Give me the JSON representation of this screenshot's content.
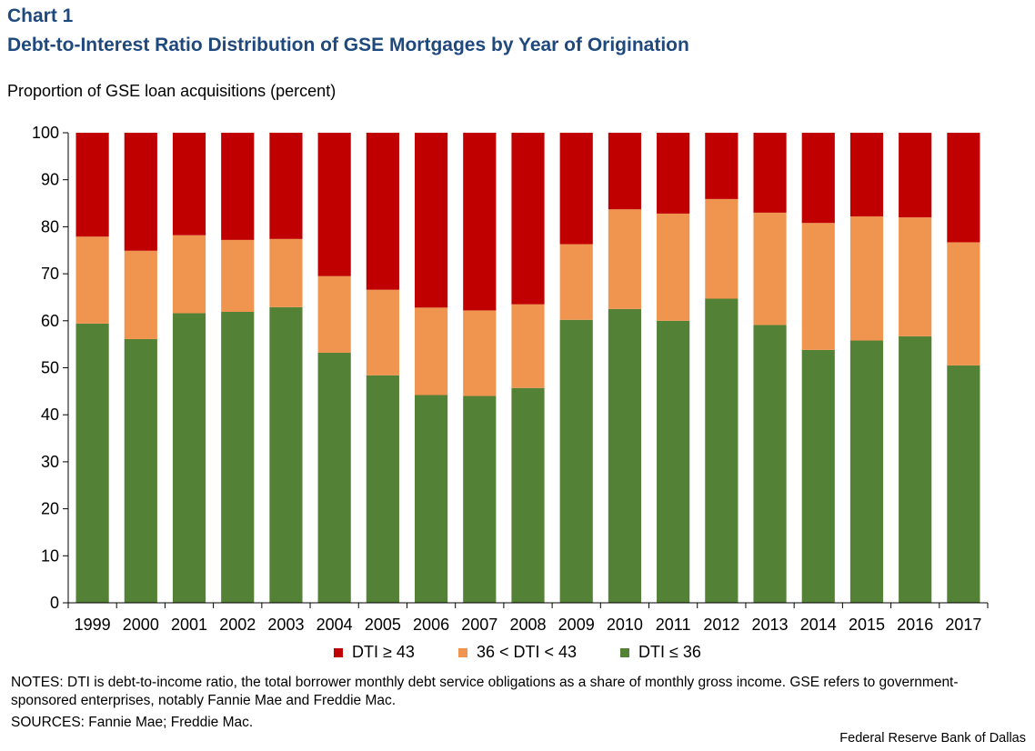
{
  "header": {
    "chart_label": "Chart 1",
    "title": "Debt-to-Interest Ratio Distribution of GSE Mortgages by Year of Origination",
    "y_unit": "Proportion of GSE loan acquisitions  (percent)"
  },
  "chart_data": {
    "type": "bar",
    "stacked": true,
    "title": "Debt-to-Interest Ratio Distribution of GSE Mortgages by Year of Origination",
    "ylabel": "Proportion of GSE loan acquisitions  (percent)",
    "ylim": [
      0,
      100
    ],
    "yticks": [
      0,
      10,
      20,
      30,
      40,
      50,
      60,
      70,
      80,
      90,
      100
    ],
    "grid": false,
    "legend_position": "bottom",
    "categories": [
      "1999",
      "2000",
      "2001",
      "2002",
      "2003",
      "2004",
      "2005",
      "2006",
      "2007",
      "2008",
      "2009",
      "2010",
      "2011",
      "2012",
      "2013",
      "2014",
      "2015",
      "2016",
      "2017"
    ],
    "series": [
      {
        "name": "DTI ≤ 36",
        "color": "#538135",
        "values": [
          59.4,
          56.1,
          61.6,
          61.9,
          62.9,
          53.2,
          48.4,
          44.2,
          44.0,
          45.7,
          60.2,
          62.5,
          60.0,
          64.7,
          59.1,
          53.8,
          55.8,
          56.7,
          50.5
        ]
      },
      {
        "name": "36 < DTI < 43",
        "color": "#f09550",
        "values": [
          18.5,
          18.8,
          16.6,
          15.3,
          14.5,
          16.3,
          18.2,
          18.6,
          18.2,
          17.8,
          16.1,
          21.2,
          22.8,
          21.2,
          23.9,
          27.0,
          26.4,
          25.3,
          26.2
        ]
      },
      {
        "name": "DTI ≥ 43",
        "color": "#c00000",
        "values": [
          22.1,
          25.1,
          21.8,
          22.8,
          22.6,
          30.5,
          33.4,
          37.2,
          37.8,
          36.5,
          23.7,
          16.3,
          17.2,
          14.1,
          17.0,
          19.2,
          17.8,
          18.0,
          23.3
        ]
      }
    ]
  },
  "legend": [
    {
      "label": "DTI ≥ 43",
      "color": "#c00000"
    },
    {
      "label": "36 < DTI < 43",
      "color": "#f09550"
    },
    {
      "label": "DTI ≤ 36",
      "color": "#538135"
    }
  ],
  "footer": {
    "notes": "NOTES: DTI is debt-to-income  ratio, the total borrower monthly  debt service obligations as a share of monthly gross income. GSE refers to government-sponsored  enterprises, notably Fannie Mae and Freddie Mac.",
    "sources": "SOURCES: Fannie Mae; Freddie Mac.",
    "credit": "Federal Reserve  Bank of Dallas"
  }
}
